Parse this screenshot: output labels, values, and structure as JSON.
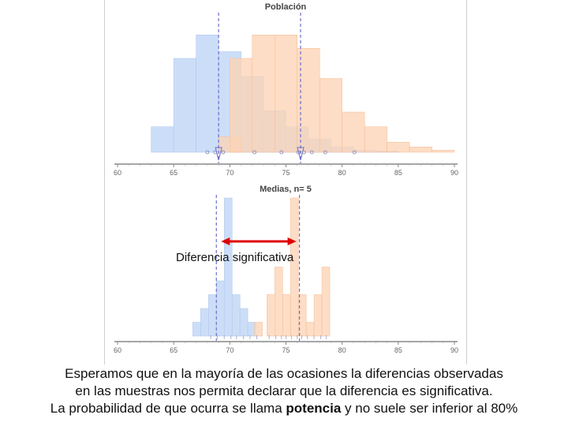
{
  "colors": {
    "blue_fill": "#c9dcf7",
    "blue_edge": "#aac4ee",
    "orange_fill": "#fcd3b6",
    "orange_edge": "#f7bb92",
    "overlap_fill": "#d1bfcf",
    "mean_line": "#6d6fc9",
    "arrow": "#e00000",
    "axis": "#888888"
  },
  "chart_data": [
    {
      "type": "bar",
      "title": "Población",
      "xlim": [
        60,
        90
      ],
      "xticks": [
        "60",
        "65",
        "70",
        "75",
        "80",
        "85",
        "90"
      ],
      "bin_width": 2,
      "series": [
        {
          "color": "blue",
          "bins": [
            {
              "x0": 63,
              "value": 38
            },
            {
              "x0": 65,
              "value": 140
            },
            {
              "x0": 67,
              "value": 175
            },
            {
              "x0": 69,
              "value": 150
            },
            {
              "x0": 71,
              "value": 113
            },
            {
              "x0": 73,
              "value": 62
            },
            {
              "x0": 75,
              "value": 38
            },
            {
              "x0": 77,
              "value": 20
            },
            {
              "x0": 79,
              "value": 8
            },
            {
              "x0": 81,
              "value": 3
            },
            {
              "x0": 83,
              "value": 2
            }
          ]
        },
        {
          "color": "orange",
          "bins": [
            {
              "x0": 69,
              "value": 23
            },
            {
              "x0": 70,
              "value": 140
            },
            {
              "x0": 72,
              "value": 175
            },
            {
              "x0": 74,
              "value": 175
            },
            {
              "x0": 76,
              "value": 155
            },
            {
              "x0": 78,
              "value": 110
            },
            {
              "x0": 80,
              "value": 60
            },
            {
              "x0": 82,
              "value": 38
            },
            {
              "x0": 84,
              "value": 15
            },
            {
              "x0": 86,
              "value": 8
            },
            {
              "x0": 88,
              "value": 3
            }
          ]
        }
      ],
      "means": [
        69,
        76.3
      ]
    },
    {
      "type": "bar",
      "title": "Medias, n= 5",
      "xlim": [
        60,
        90
      ],
      "xticks": [
        "60",
        "65",
        "70",
        "75",
        "80",
        "85",
        "90"
      ],
      "bin_width": 0.7,
      "series": [
        {
          "color": "blue",
          "bins": [
            {
              "x0": 66.7,
              "value": 1
            },
            {
              "x0": 67.4,
              "value": 2
            },
            {
              "x0": 68.1,
              "value": 3
            },
            {
              "x0": 68.8,
              "value": 4
            },
            {
              "x0": 69.5,
              "value": 10
            },
            {
              "x0": 70.2,
              "value": 3
            },
            {
              "x0": 70.9,
              "value": 2
            },
            {
              "x0": 71.6,
              "value": 1
            }
          ]
        },
        {
          "color": "orange",
          "bins": [
            {
              "x0": 72.2,
              "value": 1
            },
            {
              "x0": 73.3,
              "value": 3
            },
            {
              "x0": 74.0,
              "value": 5
            },
            {
              "x0": 74.7,
              "value": 3
            },
            {
              "x0": 75.4,
              "value": 10
            },
            {
              "x0": 76.1,
              "value": 3
            },
            {
              "x0": 76.8,
              "value": 1
            },
            {
              "x0": 77.5,
              "value": 3
            },
            {
              "x0": 78.2,
              "value": 5
            }
          ]
        }
      ],
      "means": [
        68.8,
        76.2
      ]
    }
  ],
  "annotation": "Diferencia significativa",
  "caption": {
    "line1": "Esperamos que en la mayoría de las ocasiones la diferencias observadas",
    "line2": "en las muestras nos permita declarar que la diferencia es significativa.",
    "line3_before": "La probabilidad de que ocurra se llama ",
    "line3_bold": "potencia",
    "line3_after": " y no suele ser inferior al 80%"
  }
}
